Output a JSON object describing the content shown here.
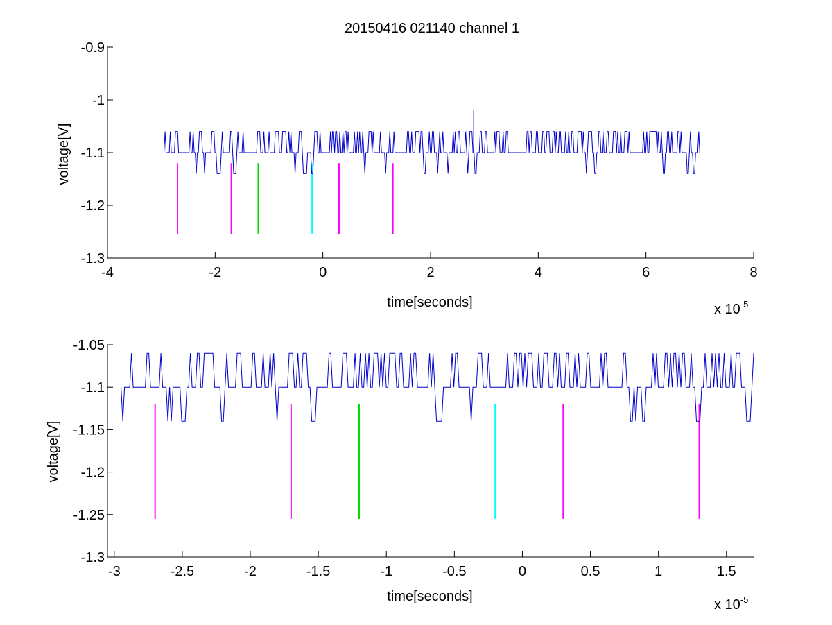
{
  "title": "20150416 021140 channel 1",
  "colors": {
    "trace": "#0000cc",
    "magenta": "#ff00ff",
    "green": "#00dd00",
    "cyan": "#00ffff",
    "axes": "#000000",
    "background": "#ffffff"
  },
  "chart_data": [
    {
      "type": "line",
      "title": "20150416 021140 channel 1",
      "xlabel": "time[seconds]",
      "ylabel": "voltage[V]",
      "x_multiplier_label": "x 10",
      "x_multiplier_exponent": "-5",
      "xlim": [
        -4,
        8
      ],
      "ylim": [
        -1.3,
        -0.9
      ],
      "xticks": [
        "-4",
        "-2",
        "0",
        "2",
        "4",
        "6",
        "8"
      ],
      "xtick_values": [
        -4,
        -2,
        0,
        2,
        4,
        6,
        8
      ],
      "yticks": [
        "-0.9",
        "-1",
        "-1.1",
        "-1.2",
        "-1.3"
      ],
      "ytick_values": [
        -0.9,
        -1.0,
        -1.1,
        -1.2,
        -1.3
      ],
      "grid": false,
      "series": [
        {
          "description_role": "voltage trace",
          "color": "#0000cc",
          "x_range": [
            -2.95,
            7.0
          ],
          "baseline": -1.1,
          "levels": [
            -1.06,
            -1.1,
            -1.14
          ],
          "spike": {
            "x": 2.8,
            "y": -1.02
          }
        }
      ],
      "markers": [
        {
          "x": -2.7,
          "y_top": -1.12,
          "y_bottom": -1.255,
          "color": "#ff00ff"
        },
        {
          "x": -1.7,
          "y_top": -1.12,
          "y_bottom": -1.255,
          "color": "#ff00ff"
        },
        {
          "x": -1.2,
          "y_top": -1.12,
          "y_bottom": -1.255,
          "color": "#00dd00"
        },
        {
          "x": -0.2,
          "y_top": -1.12,
          "y_bottom": -1.255,
          "color": "#00ffff"
        },
        {
          "x": 0.3,
          "y_top": -1.12,
          "y_bottom": -1.255,
          "color": "#ff00ff"
        },
        {
          "x": 1.3,
          "y_top": -1.12,
          "y_bottom": -1.255,
          "color": "#ff00ff"
        }
      ]
    },
    {
      "type": "line",
      "xlabel": "time[seconds]",
      "ylabel": "voltage[V]",
      "x_multiplier_label": "x 10",
      "x_multiplier_exponent": "-5",
      "xlim": [
        -3.05,
        1.7
      ],
      "ylim": [
        -1.3,
        -1.05
      ],
      "xticks": [
        "-3",
        "-2.5",
        "-2",
        "-1.5",
        "-1",
        "-0.5",
        "0",
        "0.5",
        "1",
        "1.5"
      ],
      "xtick_values": [
        -3,
        -2.5,
        -2,
        -1.5,
        -1,
        -0.5,
        0,
        0.5,
        1,
        1.5
      ],
      "yticks": [
        "-1.05",
        "-1.1",
        "-1.15",
        "-1.2",
        "-1.25",
        "-1.3"
      ],
      "ytick_values": [
        -1.05,
        -1.1,
        -1.15,
        -1.2,
        -1.25,
        -1.3
      ],
      "grid": false,
      "series": [
        {
          "description_role": "voltage trace",
          "color": "#0000cc",
          "x_range": [
            -2.95,
            1.7
          ],
          "baseline": -1.1,
          "levels": [
            -1.06,
            -1.1,
            -1.14
          ]
        }
      ],
      "markers": [
        {
          "x": -2.7,
          "y_top": -1.12,
          "y_bottom": -1.255,
          "color": "#ff00ff"
        },
        {
          "x": -1.7,
          "y_top": -1.12,
          "y_bottom": -1.255,
          "color": "#ff00ff"
        },
        {
          "x": -1.2,
          "y_top": -1.12,
          "y_bottom": -1.255,
          "color": "#00dd00"
        },
        {
          "x": -0.2,
          "y_top": -1.12,
          "y_bottom": -1.255,
          "color": "#00ffff"
        },
        {
          "x": 0.3,
          "y_top": -1.12,
          "y_bottom": -1.255,
          "color": "#ff00ff"
        },
        {
          "x": 1.3,
          "y_top": -1.12,
          "y_bottom": -1.255,
          "color": "#ff00ff"
        }
      ]
    }
  ]
}
